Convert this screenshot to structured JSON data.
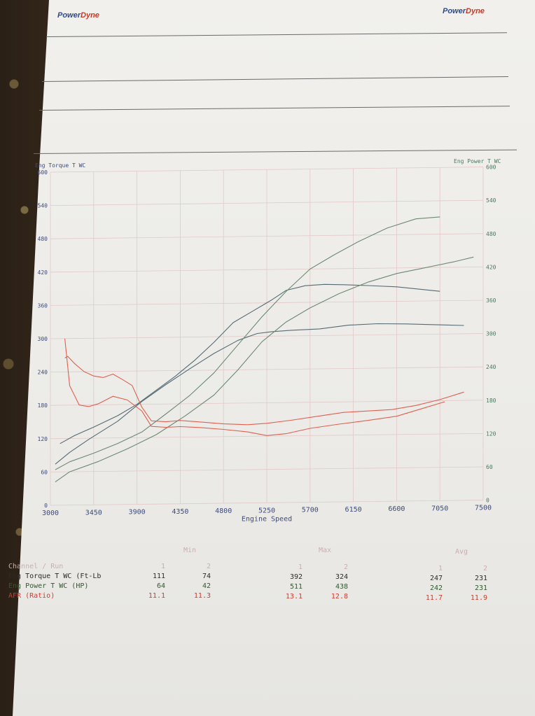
{
  "header": {
    "logo_left": {
      "part1": "Power",
      "part2": "Dyne"
    },
    "logo_right": {
      "part1": "Power",
      "part2": "Dyne"
    }
  },
  "colors": {
    "torque_line": "#556b74",
    "power_line": "#6b8a72",
    "afr_line": "#e0604f",
    "grid": "#e2c9c8"
  },
  "chart_data": {
    "type": "line",
    "title": "",
    "xlabel": "Engine Speed",
    "ylabel_left": "Eng Torque T WC",
    "ylabel_right": "Eng Power T WC",
    "xlim": [
      3000,
      7500
    ],
    "ylim": [
      0,
      600
    ],
    "x_ticks": [
      3000,
      3450,
      3900,
      4350,
      4800,
      5250,
      5700,
      6150,
      6600,
      7050,
      7500
    ],
    "y_ticks_left": [
      0,
      60,
      120,
      180,
      240,
      300,
      360,
      420,
      480,
      540,
      600
    ],
    "y_ticks_right": [
      0,
      60,
      120,
      180,
      240,
      300,
      360,
      420,
      480,
      540,
      600
    ],
    "grid": true,
    "series": [
      {
        "name": "Eng Torque T WC (Ft-Lb)",
        "run": 1,
        "color": "#556b74",
        "x": [
          3100,
          3250,
          3450,
          3700,
          3900,
          4100,
          4300,
          4500,
          4700,
          4900,
          5100,
          5300,
          5450,
          5650,
          5850,
          6050,
          6300,
          6600,
          6900,
          7050
        ],
        "y": [
          111,
          125,
          140,
          160,
          180,
          205,
          230,
          258,
          290,
          325,
          345,
          365,
          382,
          390,
          392,
          391,
          389,
          386,
          380,
          377
        ]
      },
      {
        "name": "Eng Torque T WC (Ft-Lb)",
        "run": 2,
        "color": "#556b74",
        "x": [
          3050,
          3200,
          3400,
          3700,
          3950,
          4200,
          4450,
          4700,
          4950,
          5150,
          5300,
          5500,
          5800,
          6100,
          6400,
          6700,
          7000,
          7300
        ],
        "y": [
          74,
          95,
          118,
          150,
          185,
          215,
          243,
          270,
          293,
          305,
          308,
          310,
          312,
          318,
          320,
          319,
          317,
          315
        ]
      },
      {
        "name": "Eng Power T WC (HP)",
        "run": 1,
        "color": "#6b8a72",
        "x": [
          3050,
          3200,
          3450,
          3700,
          3950,
          4200,
          4450,
          4700,
          4950,
          5200,
          5450,
          5700,
          5950,
          6200,
          6500,
          6800,
          7050
        ],
        "y": [
          64,
          78,
          93,
          110,
          130,
          162,
          195,
          235,
          285,
          335,
          380,
          420,
          445,
          468,
          492,
          508,
          511
        ]
      },
      {
        "name": "Eng Power T WC (HP)",
        "run": 2,
        "color": "#6b8a72",
        "x": [
          3050,
          3200,
          3500,
          3800,
          4100,
          4400,
          4700,
          4950,
          5200,
          5450,
          5700,
          6000,
          6300,
          6600,
          6900,
          7200,
          7400
        ],
        "y": [
          42,
          60,
          78,
          100,
          125,
          158,
          195,
          240,
          290,
          325,
          350,
          375,
          395,
          410,
          420,
          430,
          438
        ]
      },
      {
        "name": "AFR (Ratio)",
        "run": 1,
        "color": "#e0604f",
        "x": [
          3150,
          3180,
          3250,
          3350,
          3450,
          3550,
          3650,
          3750,
          3850,
          3950,
          4050,
          4200,
          4350,
          4550,
          4800,
          5050,
          5250,
          5500,
          5750,
          6050,
          6300,
          6550,
          6800,
          7050,
          7300
        ],
        "y": [
          265,
          268,
          255,
          240,
          232,
          229,
          235,
          225,
          214,
          175,
          150,
          148,
          150,
          147,
          143,
          141,
          143,
          148,
          154,
          161,
          163,
          165,
          172,
          182,
          195
        ]
      },
      {
        "name": "AFR (Ratio)",
        "run": 2,
        "color": "#e0604f",
        "x": [
          3150,
          3200,
          3300,
          3400,
          3500,
          3650,
          3800,
          3950,
          4050,
          4200,
          4350,
          4550,
          4800,
          5050,
          5250,
          5450,
          5700,
          6000,
          6300,
          6600,
          6900,
          7100
        ],
        "y": [
          300,
          215,
          180,
          177,
          182,
          195,
          188,
          168,
          140,
          138,
          139,
          137,
          133,
          128,
          121,
          124,
          133,
          140,
          146,
          153,
          168,
          178
        ]
      }
    ],
    "y_scale_note": "AFR plotted on same scale"
  },
  "table": {
    "group_headers": [
      "Min",
      "Max",
      "Avg"
    ],
    "channel_header": "Channel / Run",
    "run_headers": [
      "1",
      "2",
      "1",
      "2",
      "1",
      "2"
    ],
    "rows": [
      {
        "channel": "Eng Torque T WC (Ft-Lb",
        "values": [
          "111",
          "74",
          "392",
          "324",
          "247",
          "231"
        ]
      },
      {
        "channel": "Eng Power T WC (HP)",
        "values": [
          "64",
          "42",
          "511",
          "438",
          "242",
          "231"
        ]
      },
      {
        "channel": "AFR (Ratio)",
        "values": [
          "11.1",
          "11.3",
          "13.1",
          "12.8",
          "11.7",
          "11.9"
        ]
      }
    ]
  }
}
